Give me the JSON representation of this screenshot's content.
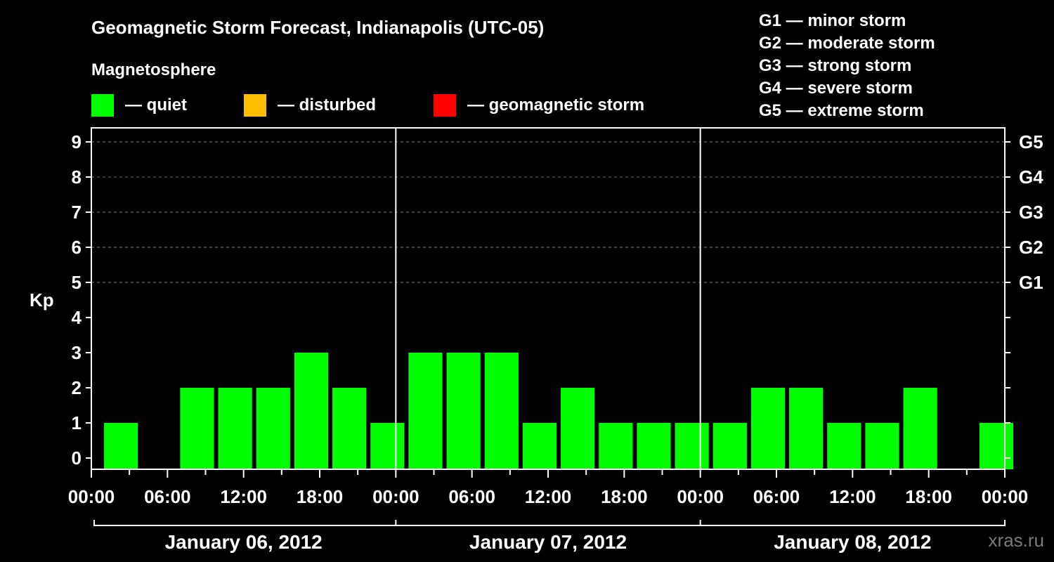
{
  "title": "Geomagnetic Storm Forecast, Indianapolis (UTC-05)",
  "magnetosphere": {
    "heading": "Magnetosphere",
    "legend": [
      {
        "label": "— quiet",
        "color": "#00ff00"
      },
      {
        "label": "— disturbed",
        "color": "#ffbf00"
      },
      {
        "label": "— geomagnetic storm",
        "color": "#ff0000"
      }
    ]
  },
  "storm_scale": [
    {
      "label": "G1 — minor storm"
    },
    {
      "label": "G2 — moderate storm"
    },
    {
      "label": "G3 — strong storm"
    },
    {
      "label": "G4 — severe storm"
    },
    {
      "label": "G5 — extreme storm"
    }
  ],
  "watermark": "xras.ru",
  "chart_data": {
    "type": "bar",
    "ylabel": "Kp",
    "ylim": [
      0,
      9
    ],
    "yticks": [
      "0",
      "1",
      "2",
      "3",
      "4",
      "5",
      "6",
      "7",
      "8",
      "9"
    ],
    "right_axis_labels": [
      {
        "kp": 5,
        "label": "G1"
      },
      {
        "kp": 6,
        "label": "G2"
      },
      {
        "kp": 7,
        "label": "G3"
      },
      {
        "kp": 8,
        "label": "G4"
      },
      {
        "kp": 9,
        "label": "G5"
      }
    ],
    "xtick_labels": [
      "00:00",
      "06:00",
      "12:00",
      "18:00",
      "00:00",
      "06:00",
      "12:00",
      "18:00",
      "00:00",
      "06:00",
      "12:00",
      "18:00",
      "00:00"
    ],
    "days": [
      "January 06, 2012",
      "January 07, 2012",
      "January 08, 2012"
    ],
    "bar_interval_hours": 3,
    "start_hour": 1,
    "values": [
      1,
      0,
      2,
      2,
      2,
      3,
      2,
      1,
      3,
      3,
      3,
      1,
      2,
      1,
      1,
      1,
      1,
      2,
      2,
      1,
      1,
      2,
      0,
      1
    ],
    "bar_color": "#00ff00",
    "grid": "dashed at Kp 5-9"
  }
}
